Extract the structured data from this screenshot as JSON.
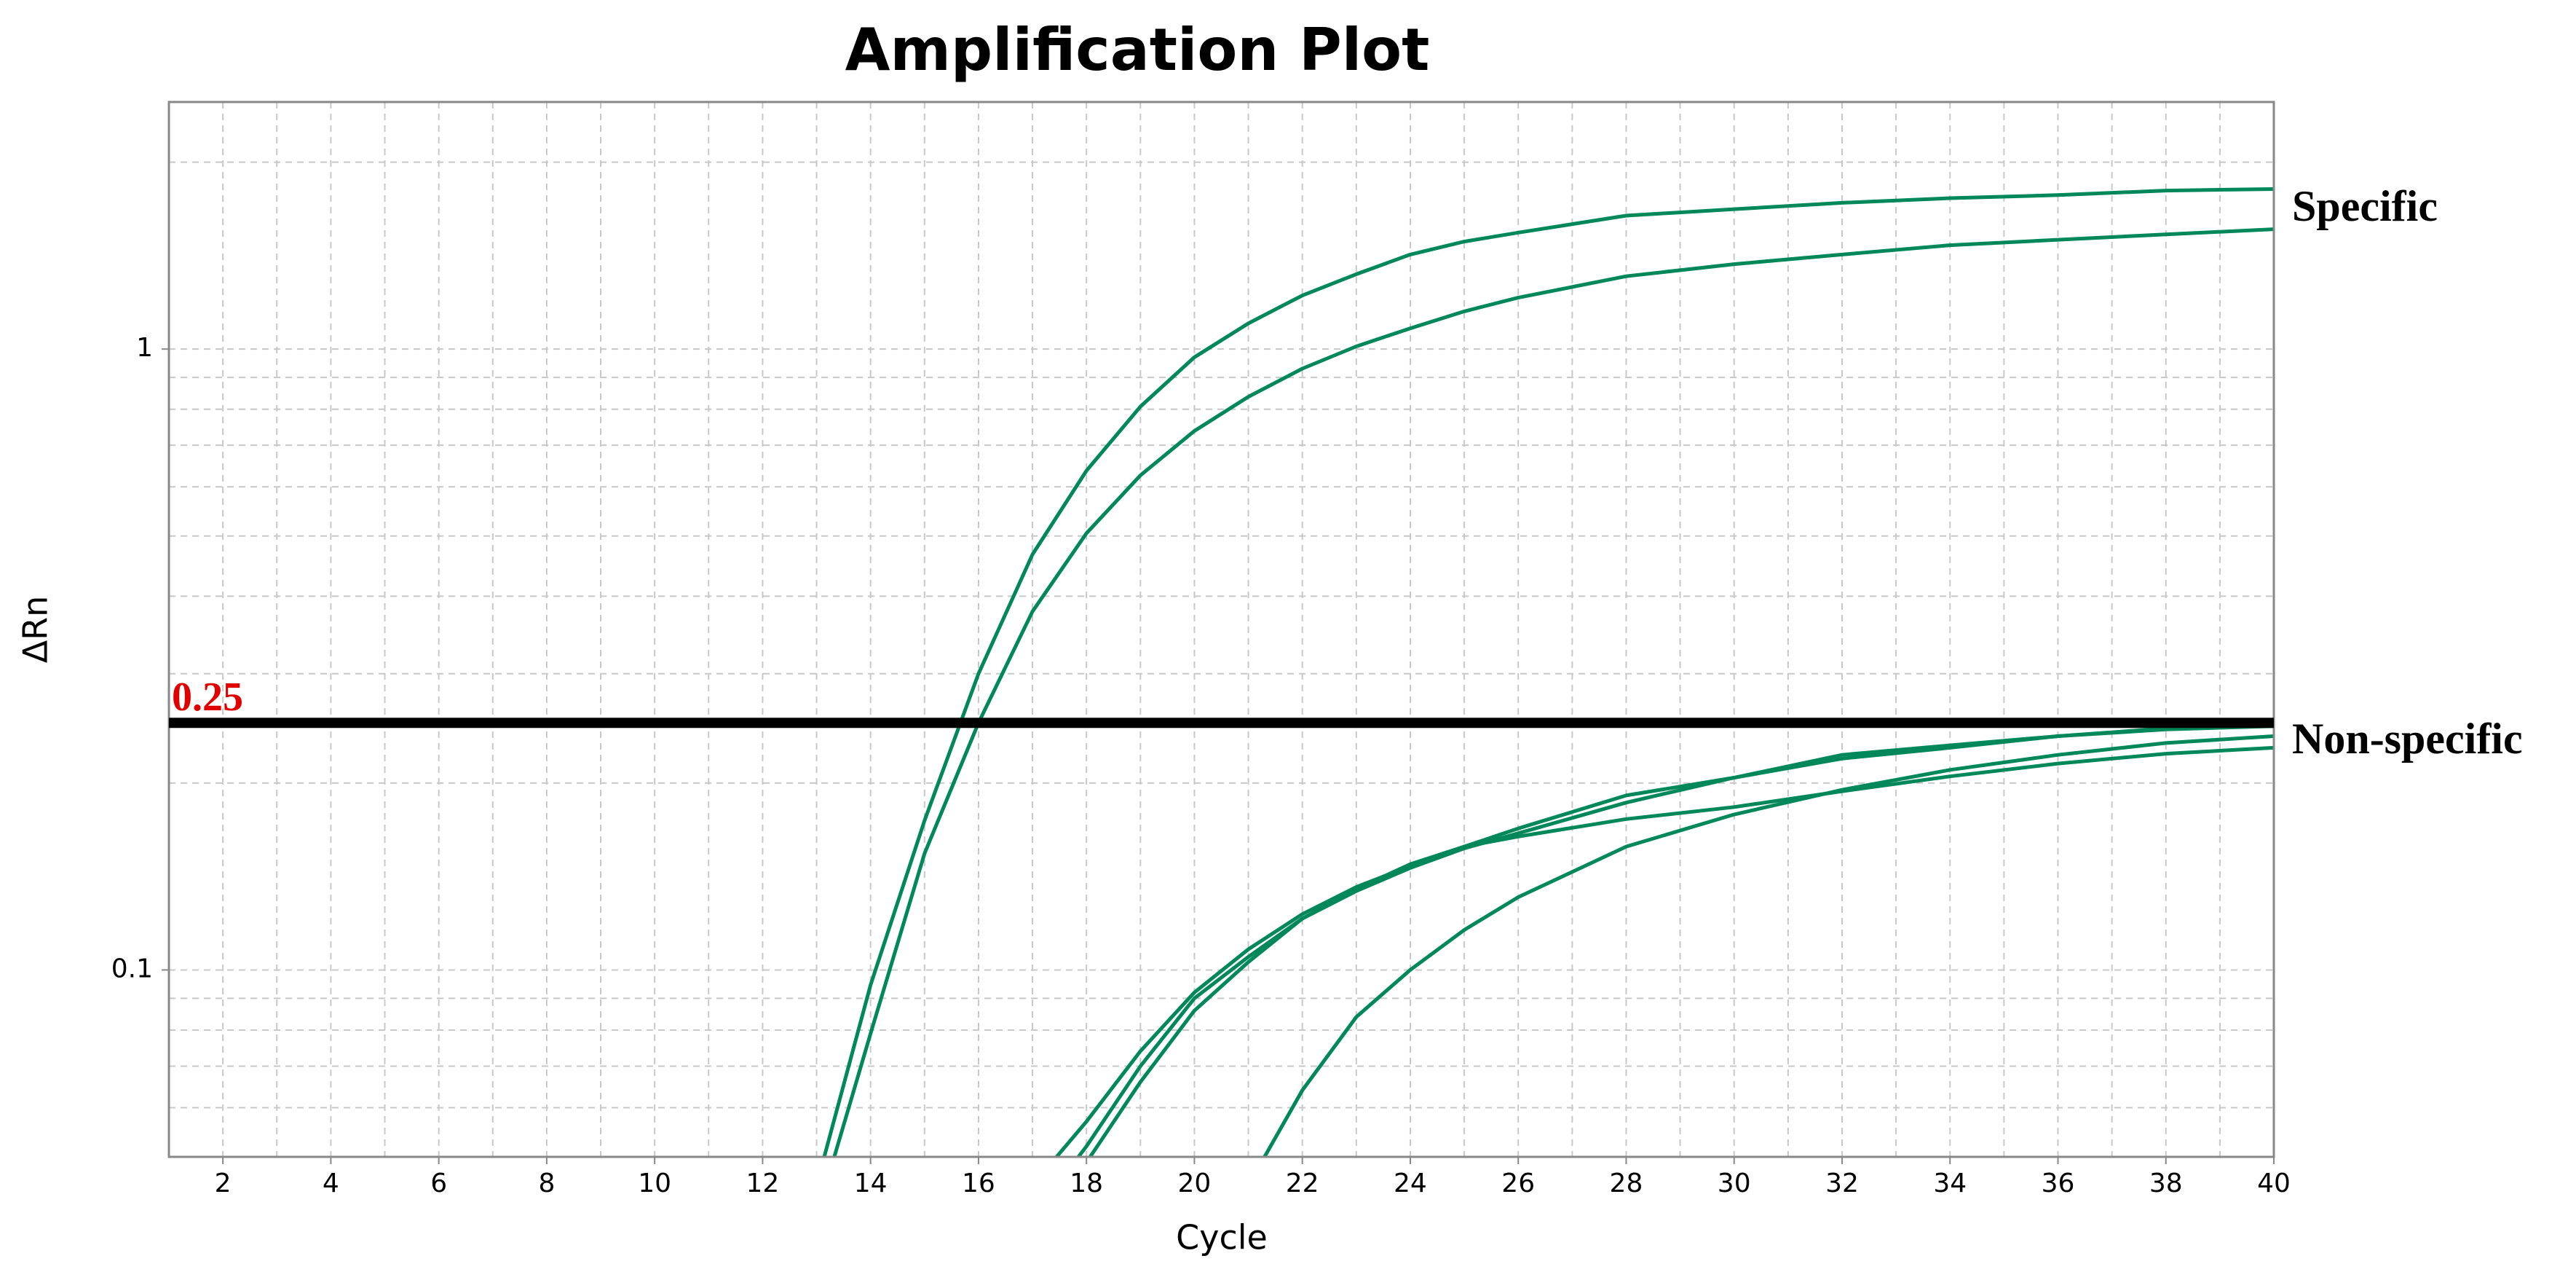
{
  "chart_data": {
    "type": "line",
    "title": "Amplification Plot",
    "x_label": "Cycle",
    "y_label": "ΔRn",
    "log_y": true,
    "grid": true,
    "xlim": [
      1,
      40
    ],
    "ylim": [
      0.05,
      2.5
    ],
    "xticks": [
      2,
      4,
      6,
      8,
      10,
      12,
      14,
      16,
      18,
      20,
      22,
      24,
      26,
      28,
      30,
      32,
      34,
      36,
      38,
      40
    ],
    "xminorticks": [
      3,
      5,
      7,
      9,
      11,
      13,
      15,
      17,
      19,
      21,
      23,
      25,
      27,
      29,
      31,
      33,
      35,
      37,
      39
    ],
    "yticks": [
      0.1,
      1
    ],
    "yminorticks": [
      0.06,
      0.07,
      0.08,
      0.09,
      0.2,
      0.3,
      0.4,
      0.5,
      0.6,
      0.7,
      0.8,
      0.9,
      2
    ],
    "threshold": 0.25,
    "annotations": [
      "Specific",
      "Non-specific"
    ],
    "x": [
      13,
      14,
      15,
      16,
      17,
      18,
      19,
      20,
      21,
      22,
      23,
      24,
      25,
      26,
      28,
      30,
      32,
      34,
      36,
      38,
      40
    ],
    "series": [
      {
        "color": "#00875a",
        "values": [
          0.045,
          0.0946,
          0.174,
          0.3,
          0.467,
          0.637,
          0.808,
          0.97,
          1.1,
          1.22,
          1.32,
          1.42,
          1.49,
          1.54,
          1.64,
          1.68,
          1.72,
          1.75,
          1.77,
          1.8,
          1.81
        ]
      },
      {
        "color": "#00875a",
        "values": [
          0.04,
          0.079,
          0.154,
          0.25,
          0.378,
          0.505,
          0.626,
          0.738,
          0.838,
          0.93,
          1.01,
          1.08,
          1.15,
          1.21,
          1.31,
          1.37,
          1.42,
          1.47,
          1.5,
          1.53,
          1.56
        ]
      },
      {
        "color": "#00875a",
        "values": [
          null,
          null,
          null,
          null,
          0.045,
          0.057,
          0.074,
          0.092,
          0.108,
          0.123,
          0.136,
          0.147,
          0.158,
          0.169,
          0.191,
          0.204,
          0.219,
          0.228,
          0.238,
          0.245,
          0.249
        ]
      },
      {
        "color": "#00875a",
        "values": [
          null,
          null,
          null,
          null,
          0.04,
          0.052,
          0.07,
          0.09,
          0.105,
          0.121,
          0.134,
          0.146,
          0.157,
          0.166,
          0.186,
          0.204,
          0.222,
          0.23,
          0.238,
          0.244,
          0.247
        ]
      },
      {
        "color": "#00875a",
        "values": [
          null,
          null,
          null,
          null,
          0.04,
          0.049,
          0.066,
          0.086,
          0.103,
          0.121,
          0.135,
          0.148,
          0.158,
          0.164,
          0.175,
          0.183,
          0.194,
          0.205,
          0.215,
          0.223,
          0.228
        ]
      },
      {
        "color": "#00875a",
        "values": [
          null,
          null,
          null,
          null,
          null,
          null,
          null,
          null,
          0.045,
          0.064,
          0.084,
          0.1,
          0.116,
          0.131,
          0.158,
          0.178,
          0.195,
          0.21,
          0.222,
          0.232,
          0.238
        ]
      }
    ]
  }
}
